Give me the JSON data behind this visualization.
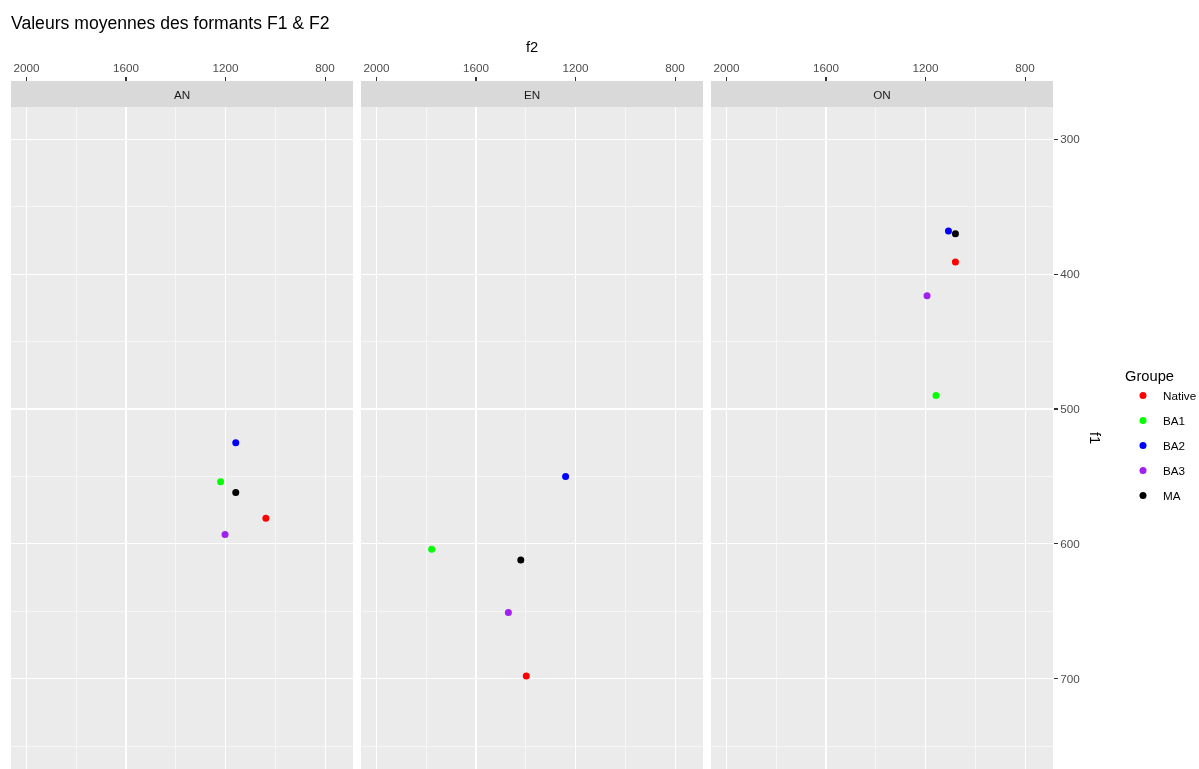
{
  "chart_data": [
    {
      "type": "scatter",
      "title": "Valeurs moyennes des formants F1 & F2",
      "subtitle": "AN",
      "marker": "circle",
      "grid": true,
      "tick_labels": "x",
      "xlim": [
        2062,
        688
      ],
      "xticks": [
        2000,
        {
          "value": 1800,
          "label": null
        },
        1600,
        {
          "value": 1400,
          "label": null
        },
        1200,
        {
          "value": 1000,
          "label": null
        },
        800
      ],
      "ylim": [
        767,
        276
      ],
      "yticks": [
        300,
        {
          "value": 350,
          "label": null
        },
        400,
        {
          "value": 450,
          "label": null
        },
        500,
        {
          "value": 550,
          "label": null
        },
        600,
        {
          "value": 650,
          "label": null
        },
        700,
        {
          "value": 750,
          "label": null
        }
      ],
      "series": [
        {
          "color": "#ff0000",
          "x": [
            1038
          ],
          "values": [
            581
          ]
        },
        {
          "color": "#00ff00",
          "x": [
            1220
          ],
          "values": [
            554
          ]
        },
        {
          "color": "#0000ff",
          "x": [
            1159
          ],
          "values": [
            525
          ]
        },
        {
          "color": "#a020f0",
          "x": [
            1202
          ],
          "values": [
            593
          ]
        },
        {
          "color": "#000000",
          "x": [
            1159
          ],
          "values": [
            562
          ]
        }
      ]
    },
    {
      "type": "scatter",
      "subtitle": "EN",
      "xlabel": "f2",
      "marker": "circle",
      "grid": true,
      "tick_labels": "x",
      "xlim": [
        2062,
        688
      ],
      "xticks": [
        2000,
        {
          "value": 1800,
          "label": null
        },
        1600,
        {
          "value": 1400,
          "label": null
        },
        1200,
        {
          "value": 1000,
          "label": null
        },
        800
      ],
      "ylim": [
        767,
        276
      ],
      "yticks": [
        300,
        {
          "value": 350,
          "label": null
        },
        400,
        {
          "value": 450,
          "label": null
        },
        500,
        {
          "value": 550,
          "label": null
        },
        600,
        {
          "value": 650,
          "label": null
        },
        700,
        {
          "value": 750,
          "label": null
        }
      ],
      "series": [
        {
          "color": "#ff0000",
          "x": [
            1398
          ],
          "values": [
            698
          ]
        },
        {
          "color": "#00ff00",
          "x": [
            1778
          ],
          "values": [
            604
          ]
        },
        {
          "color": "#0000ff",
          "x": [
            1240
          ],
          "values": [
            550
          ]
        },
        {
          "color": "#a020f0",
          "x": [
            1470
          ],
          "values": [
            651
          ]
        },
        {
          "color": "#000000",
          "x": [
            1420
          ],
          "values": [
            612
          ]
        }
      ]
    },
    {
      "type": "scatter",
      "subtitle": "ON",
      "ylabel": "f1",
      "legend_title": "Groupe",
      "legend": "right",
      "marker": "circle",
      "grid": true,
      "xlim": [
        2062,
        688
      ],
      "xticks": [
        2000,
        {
          "value": 1800,
          "label": null
        },
        1600,
        {
          "value": 1400,
          "label": null
        },
        1200,
        {
          "value": 1000,
          "label": null
        },
        800
      ],
      "ylim": [
        767,
        276
      ],
      "yticks": [
        300,
        {
          "value": 350,
          "label": null
        },
        400,
        {
          "value": 450,
          "label": null
        },
        500,
        {
          "value": 550,
          "label": null
        },
        600,
        {
          "value": 650,
          "label": null
        },
        700,
        {
          "value": 750,
          "label": null
        }
      ],
      "series": [
        {
          "name": "Native",
          "color": "#ff0000",
          "x": [
            1080
          ],
          "values": [
            391
          ]
        },
        {
          "name": "BA1",
          "color": "#00ff00",
          "x": [
            1158
          ],
          "values": [
            490
          ]
        },
        {
          "name": "BA2",
          "color": "#0000ff",
          "x": [
            1108
          ],
          "values": [
            368
          ]
        },
        {
          "name": "BA3",
          "color": "#a020f0",
          "x": [
            1194
          ],
          "values": [
            416
          ]
        },
        {
          "name": "MA",
          "color": "#000000",
          "x": [
            1080
          ],
          "values": [
            370
          ]
        }
      ]
    }
  ]
}
